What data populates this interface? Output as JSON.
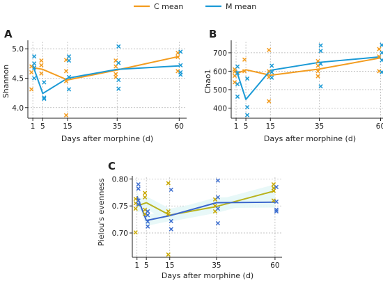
{
  "legend": {
    "items": [
      {
        "label": "C mean",
        "color": "#f39c1f"
      },
      {
        "label": "M mean",
        "color": "#1b9ad6"
      }
    ]
  },
  "colors": {
    "c_points": "#f39c1f",
    "m_points": "#1b9ad6",
    "c_line": "#f39c1f",
    "m_line": "#1b9ad6",
    "panel_c_c_points": "#c9a800",
    "panel_c_m_points": "#3e6fd0",
    "panel_c_c_line": "#b8b21c",
    "panel_c_m_line": "#3b66cc",
    "grid": "#b0b0b0",
    "band": "#e6f7f7"
  },
  "chart_data": [
    {
      "panel": "A",
      "type": "line",
      "xlabel": "Days after morphine (d)",
      "ylabel": "Shannon",
      "x_ticks": [
        1,
        5,
        15,
        35,
        60
      ],
      "y_ticks": [
        4.0,
        4.5,
        5.0
      ],
      "y_tick_labels": [
        "4.0",
        "4.5",
        "5.0"
      ],
      "xlim": [
        -1,
        63
      ],
      "ylim": [
        3.82,
        5.12
      ],
      "grid": true,
      "series": [
        {
          "name": "C mean",
          "x": [
            1,
            5,
            15,
            35,
            60
          ],
          "values": [
            4.68,
            4.65,
            4.47,
            4.64,
            4.87
          ]
        },
        {
          "name": "M mean",
          "x": [
            1,
            5,
            15,
            35,
            60
          ],
          "values": [
            4.72,
            4.24,
            4.5,
            4.65,
            4.71
          ]
        }
      ],
      "points": {
        "C": [
          [
            1,
            4.31
          ],
          [
            1,
            4.6
          ],
          [
            1,
            4.7
          ],
          [
            5,
            4.58
          ],
          [
            5,
            4.72
          ],
          [
            5,
            4.8
          ],
          [
            15,
            3.87
          ],
          [
            15,
            4.45
          ],
          [
            15,
            4.62
          ],
          [
            15,
            4.81
          ],
          [
            35,
            4.52
          ],
          [
            35,
            4.57
          ],
          [
            35,
            4.7
          ],
          [
            35,
            4.8
          ],
          [
            60,
            4.62
          ],
          [
            60,
            4.86
          ],
          [
            60,
            4.93
          ]
        ],
        "M": [
          [
            1,
            4.5
          ],
          [
            1,
            4.68
          ],
          [
            1,
            4.75
          ],
          [
            1,
            4.87
          ],
          [
            5,
            4.15
          ],
          [
            5,
            4.17
          ],
          [
            5,
            4.43
          ],
          [
            15,
            4.31
          ],
          [
            15,
            4.52
          ],
          [
            15,
            4.8
          ],
          [
            15,
            4.87
          ],
          [
            35,
            4.32
          ],
          [
            35,
            4.47
          ],
          [
            35,
            4.76
          ],
          [
            35,
            5.04
          ],
          [
            60,
            4.56
          ],
          [
            60,
            4.6
          ],
          [
            60,
            4.72
          ],
          [
            60,
            4.95
          ]
        ]
      }
    },
    {
      "panel": "B",
      "type": "line",
      "xlabel": "Days after morphine (d)",
      "ylabel": "Chao1",
      "x_ticks": [
        1,
        5,
        15,
        35,
        60
      ],
      "y_ticks": [
        400,
        500,
        600,
        700
      ],
      "y_tick_labels": [
        "400",
        "500",
        "600",
        "700"
      ],
      "xlim": [
        -1,
        63
      ],
      "ylim": [
        345,
        760
      ],
      "grid": true,
      "series": [
        {
          "name": "C mean",
          "x": [
            1,
            5,
            15,
            35,
            60
          ],
          "values": [
            585,
            608,
            578,
            612,
            672
          ]
        },
        {
          "name": "M mean",
          "x": [
            1,
            5,
            15,
            35,
            60
          ],
          "values": [
            610,
            447,
            605,
            648,
            678
          ]
        }
      ],
      "points": {
        "C": [
          [
            1,
            540
          ],
          [
            1,
            575
          ],
          [
            1,
            598
          ],
          [
            1,
            610
          ],
          [
            5,
            600
          ],
          [
            5,
            663
          ],
          [
            15,
            437
          ],
          [
            15,
            568
          ],
          [
            15,
            600
          ],
          [
            15,
            715
          ],
          [
            35,
            573
          ],
          [
            35,
            600
          ],
          [
            35,
            630
          ],
          [
            35,
            655
          ],
          [
            60,
            600
          ],
          [
            60,
            680
          ],
          [
            60,
            720
          ]
        ],
        "M": [
          [
            1,
            462
          ],
          [
            1,
            530
          ],
          [
            1,
            590
          ],
          [
            1,
            625
          ],
          [
            5,
            362
          ],
          [
            5,
            405
          ],
          [
            5,
            560
          ],
          [
            15,
            565
          ],
          [
            15,
            595
          ],
          [
            15,
            630
          ],
          [
            35,
            518
          ],
          [
            35,
            640
          ],
          [
            35,
            710
          ],
          [
            35,
            740
          ],
          [
            60,
            595
          ],
          [
            60,
            660
          ],
          [
            60,
            700
          ],
          [
            60,
            742
          ]
        ]
      }
    },
    {
      "panel": "C",
      "type": "line",
      "xlabel": "Days after morphine (d)",
      "ylabel": "Pielou's evenness",
      "x_ticks": [
        1,
        5,
        15,
        35,
        60
      ],
      "y_ticks": [
        0.7,
        0.75,
        0.8
      ],
      "y_tick_labels": [
        "0.70",
        "0.75",
        "0.80"
      ],
      "xlim": [
        -1,
        63
      ],
      "ylim": [
        0.655,
        0.803
      ],
      "grid": true,
      "series": [
        {
          "name": "C mean",
          "x": [
            1,
            5,
            15,
            35,
            60
          ],
          "values": [
            0.75,
            0.756,
            0.733,
            0.749,
            0.778
          ]
        },
        {
          "name": "M mean",
          "x": [
            1,
            5,
            15,
            35,
            60
          ],
          "values": [
            0.768,
            0.723,
            0.732,
            0.756,
            0.757
          ]
        }
      ],
      "points": {
        "C": [
          [
            1,
            0.701
          ],
          [
            1,
            0.745
          ],
          [
            1,
            0.755
          ],
          [
            1,
            0.763
          ],
          [
            5,
            0.735
          ],
          [
            5,
            0.743
          ],
          [
            5,
            0.766
          ],
          [
            5,
            0.774
          ],
          [
            15,
            0.66
          ],
          [
            15,
            0.735
          ],
          [
            15,
            0.74
          ],
          [
            15,
            0.792
          ],
          [
            35,
            0.74
          ],
          [
            35,
            0.75
          ],
          [
            35,
            0.762
          ],
          [
            60,
            0.76
          ],
          [
            60,
            0.778
          ],
          [
            60,
            0.783
          ],
          [
            60,
            0.79
          ]
        ],
        "M": [
          [
            1,
            0.753
          ],
          [
            1,
            0.76
          ],
          [
            1,
            0.782
          ],
          [
            1,
            0.79
          ],
          [
            5,
            0.712
          ],
          [
            5,
            0.721
          ],
          [
            5,
            0.733
          ],
          [
            5,
            0.74
          ],
          [
            15,
            0.707
          ],
          [
            15,
            0.722
          ],
          [
            15,
            0.78
          ],
          [
            35,
            0.718
          ],
          [
            35,
            0.745
          ],
          [
            35,
            0.766
          ],
          [
            35,
            0.797
          ],
          [
            60,
            0.74
          ],
          [
            60,
            0.743
          ],
          [
            60,
            0.758
          ],
          [
            60,
            0.785
          ]
        ]
      }
    }
  ]
}
